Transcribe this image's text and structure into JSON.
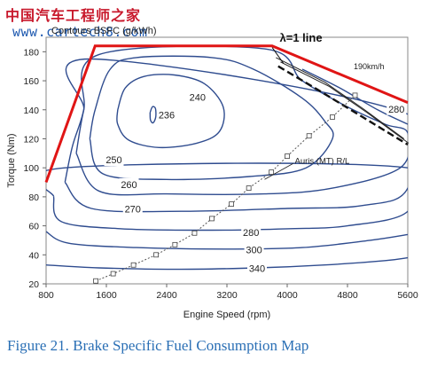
{
  "watermark": {
    "site_name": "中国汽车工程师之家",
    "site_url": "www.cartech8.com"
  },
  "caption": "Figure 21. Brake Specific Fuel Consumption Map",
  "chart_data": {
    "type": "contour",
    "title": "Contours BSFC (g/kWh)",
    "xlabel": "Engine Speed (rpm)",
    "ylabel": "Torque (Nm)",
    "xlim": [
      800,
      5600
    ],
    "ylim": [
      20,
      190
    ],
    "xticks": [
      800,
      1600,
      2400,
      3200,
      4000,
      4800,
      5600
    ],
    "yticks": [
      20,
      40,
      60,
      80,
      100,
      120,
      140,
      160,
      180
    ],
    "grid": false,
    "colors": {
      "contour": "#2f4c8f",
      "max_torque": "#e01515",
      "lambda_line": "#111111",
      "road_load": "#555555"
    },
    "max_torque_curve": {
      "points": [
        [
          800,
          90
        ],
        [
          1450,
          184
        ],
        [
          3800,
          184
        ],
        [
          5600,
          145
        ]
      ]
    },
    "lambda_line": {
      "label": "λ=1  line",
      "points": [
        [
          3880,
          170
        ],
        [
          4400,
          154
        ],
        [
          5000,
          135
        ],
        [
          5600,
          116
        ]
      ]
    },
    "speed_line": {
      "label": "190km/h",
      "points": [
        [
          3850,
          176
        ],
        [
          4500,
          159
        ],
        [
          5000,
          141
        ],
        [
          5550,
          120
        ]
      ]
    },
    "road_load": {
      "label": "Auris (MT) R/L",
      "points": [
        [
          1460,
          22
        ],
        [
          1690,
          27
        ],
        [
          1960,
          33
        ],
        [
          2260,
          40
        ],
        [
          2510,
          47
        ],
        [
          2770,
          55
        ],
        [
          3000,
          65
        ],
        [
          3260,
          75
        ],
        [
          3490,
          86
        ],
        [
          3790,
          97
        ],
        [
          4000,
          108
        ],
        [
          4290,
          122
        ],
        [
          4600,
          135
        ],
        [
          4900,
          150
        ]
      ]
    },
    "contours": [
      {
        "level": "236",
        "label_pos": [
          2400,
          136
        ],
        "points": [
          [
            2180,
            138
          ],
          [
            2210,
            142
          ],
          [
            2250,
            141
          ],
          [
            2255,
            135
          ],
          [
            2220,
            131
          ],
          [
            2185,
            133
          ],
          [
            2180,
            138
          ]
        ]
      },
      {
        "level": "240",
        "label_pos": [
          2810,
          148
        ],
        "points": [
          [
            1750,
            140
          ],
          [
            1850,
            155
          ],
          [
            2100,
            163
          ],
          [
            2500,
            164
          ],
          [
            2900,
            158
          ],
          [
            3150,
            142
          ],
          [
            3100,
            125
          ],
          [
            2800,
            117
          ],
          [
            2300,
            114
          ],
          [
            1900,
            119
          ],
          [
            1750,
            130
          ],
          [
            1750,
            140
          ]
        ]
      },
      {
        "level": "250",
        "label_pos": [
          1700,
          105
        ],
        "points": [
          [
            1380,
            120
          ],
          [
            1450,
            140
          ],
          [
            1650,
            168
          ],
          [
            2000,
            176
          ],
          [
            3000,
            176
          ],
          [
            3550,
            168
          ],
          [
            4200,
            148
          ],
          [
            4500,
            132
          ],
          [
            4600,
            120
          ],
          [
            4250,
            100
          ],
          [
            3500,
            94
          ],
          [
            2400,
            92
          ],
          [
            1550,
            96
          ],
          [
            1380,
            120
          ]
        ]
      },
      {
        "level": "260",
        "label_pos": [
          1900,
          88
        ],
        "points": [
          [
            1200,
            110
          ],
          [
            1300,
            140
          ],
          [
            1500,
            178
          ],
          [
            3700,
            182
          ],
          [
            4200,
            160
          ],
          [
            4800,
            142
          ],
          [
            5300,
            130
          ],
          [
            5600,
            124
          ],
          [
            5500,
            100
          ],
          [
            4600,
            86
          ],
          [
            3700,
            82
          ],
          [
            2400,
            82
          ],
          [
            1500,
            84
          ],
          [
            1200,
            110
          ]
        ]
      },
      {
        "level": "270",
        "label_pos": [
          1950,
          71
        ],
        "points": [
          [
            1050,
            90
          ],
          [
            1150,
            115
          ],
          [
            1300,
            140
          ],
          [
            1400,
            175
          ],
          [
            5600,
            137
          ],
          [
            5600,
            86
          ],
          [
            5000,
            74
          ],
          [
            4000,
            72
          ],
          [
            2600,
            70
          ],
          [
            1400,
            72
          ],
          [
            1050,
            90
          ]
        ]
      },
      {
        "level": "280",
        "label_pos": [
          3520,
          55
        ],
        "points": [
          [
            900,
            80
          ],
          [
            1050,
            100
          ],
          [
            5600,
            100
          ],
          [
            5600,
            70
          ],
          [
            4800,
            60
          ],
          [
            4000,
            58
          ],
          [
            3000,
            57
          ],
          [
            1800,
            58
          ],
          [
            1000,
            63
          ],
          [
            900,
            80
          ]
        ]
      },
      {
        "level": "300",
        "label_pos": [
          3560,
          43
        ],
        "points": [
          [
            800,
            56
          ],
          [
            1100,
            48
          ],
          [
            2000,
            45
          ],
          [
            3200,
            44
          ],
          [
            4200,
            45
          ],
          [
            5100,
            50
          ],
          [
            5600,
            54
          ]
        ]
      },
      {
        "level": "340",
        "label_pos": [
          3600,
          30
        ],
        "points": [
          [
            800,
            33
          ],
          [
            1500,
            31
          ],
          [
            2500,
            30
          ],
          [
            3600,
            31
          ],
          [
            4500,
            33
          ],
          [
            5300,
            36
          ],
          [
            5600,
            38
          ]
        ]
      },
      {
        "level": "280",
        "label_pos": [
          5450,
          140
        ],
        "points": [
          [
            4200,
            168
          ],
          [
            4700,
            155
          ],
          [
            5200,
            140
          ],
          [
            5600,
            130
          ]
        ]
      }
    ]
  }
}
